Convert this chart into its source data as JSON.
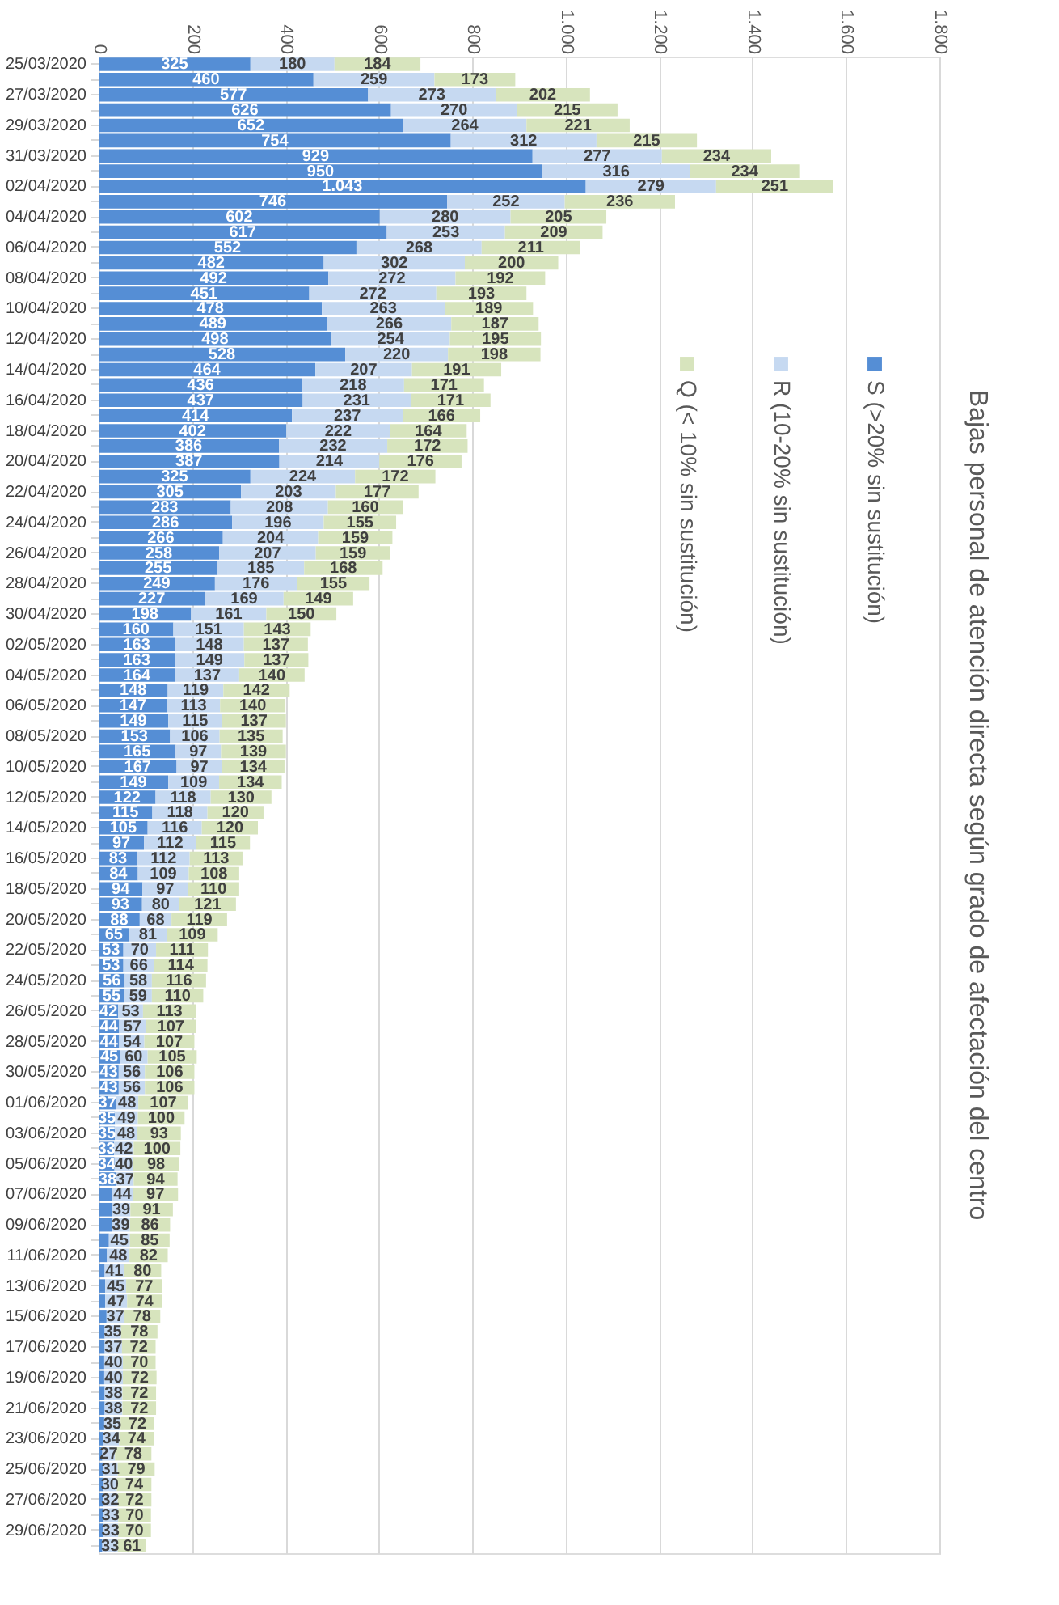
{
  "chart_data": {
    "type": "bar",
    "orientation": "horizontal",
    "stacked": true,
    "title": "Bajas personal de atención directa según grado de afectación del centro",
    "categories": [
      "25/03/2020",
      null,
      "27/03/2020",
      null,
      "29/03/2020",
      null,
      "31/03/2020",
      null,
      "02/04/2020",
      null,
      "04/04/2020",
      null,
      "06/04/2020",
      null,
      "08/04/2020",
      null,
      "10/04/2020",
      null,
      "12/04/2020",
      null,
      "14/04/2020",
      null,
      "16/04/2020",
      null,
      "18/04/2020",
      null,
      "20/04/2020",
      null,
      "22/04/2020",
      null,
      "24/04/2020",
      null,
      "26/04/2020",
      null,
      "28/04/2020",
      null,
      "30/04/2020",
      null,
      "02/05/2020",
      null,
      "04/05/2020",
      null,
      "06/05/2020",
      null,
      "08/05/2020",
      null,
      "10/05/2020",
      null,
      "12/05/2020",
      null,
      "14/05/2020",
      null,
      "16/05/2020",
      null,
      "18/05/2020",
      null,
      "20/05/2020",
      null,
      "22/05/2020",
      null,
      "24/05/2020",
      null,
      "26/05/2020",
      null,
      "28/05/2020",
      null,
      "30/05/2020",
      null,
      "01/06/2020",
      null,
      "03/06/2020",
      null,
      "05/06/2020",
      null,
      "07/06/2020",
      null,
      "09/06/2020",
      null,
      "11/06/2020",
      null,
      "13/06/2020",
      null,
      "15/06/2020",
      null,
      "17/06/2020",
      null,
      "19/06/2020",
      null,
      "21/06/2020",
      null,
      "23/06/2020",
      null,
      "25/06/2020",
      null,
      "27/06/2020",
      null,
      "29/06/2020",
      null
    ],
    "series": [
      {
        "name": "S (>20% sin sustitución)",
        "color": "#558ed5",
        "values": [
          325,
          460,
          577,
          626,
          652,
          754,
          929,
          950,
          1043,
          746,
          602,
          617,
          552,
          482,
          492,
          451,
          478,
          489,
          498,
          528,
          464,
          436,
          437,
          414,
          402,
          386,
          387,
          325,
          305,
          283,
          286,
          266,
          258,
          255,
          249,
          227,
          198,
          160,
          163,
          163,
          164,
          148,
          147,
          149,
          153,
          165,
          167,
          149,
          122,
          115,
          105,
          97,
          83,
          84,
          94,
          93,
          88,
          65,
          53,
          53,
          56,
          55,
          42,
          44,
          44,
          45,
          43,
          43,
          37,
          35,
          35,
          33,
          34,
          38,
          29,
          29,
          28,
          22,
          18,
          13,
          14,
          14,
          17,
          13,
          13,
          12,
          12,
          13,
          13,
          12,
          10,
          8,
          10,
          9,
          9,
          9,
          9,
          8
        ],
        "value_labels": [
          "325",
          "460",
          "577",
          "626",
          "652",
          "754",
          "929",
          "950",
          "1.043",
          "746",
          "602",
          "617",
          "552",
          "482",
          "492",
          "451",
          "478",
          "489",
          "498",
          "528",
          "464",
          "436",
          "437",
          "414",
          "402",
          "386",
          "387",
          "325",
          "305",
          "283",
          "286",
          "266",
          "258",
          "255",
          "249",
          "227",
          "198",
          "160",
          "163",
          "163",
          "164",
          "148",
          "147",
          "149",
          "153",
          "165",
          "167",
          "149",
          "122",
          "115",
          "105",
          "97",
          "83",
          "84",
          "94",
          "93",
          "88",
          "65",
          "53",
          "53",
          "56",
          "55",
          "42",
          "44",
          "44",
          "45",
          "43",
          "43",
          "37",
          "35",
          "35",
          "33",
          "34",
          "38",
          null,
          null,
          null,
          null,
          null,
          null,
          null,
          null,
          null,
          null,
          null,
          null,
          null,
          null,
          null,
          null,
          null,
          null,
          null,
          null,
          null,
          null,
          null,
          null
        ]
      },
      {
        "name": "R (10-20% sin sustitución)",
        "color": "#c6d9f1",
        "values": [
          180,
          259,
          273,
          270,
          264,
          312,
          277,
          316,
          279,
          252,
          280,
          253,
          268,
          302,
          272,
          272,
          263,
          266,
          254,
          220,
          207,
          218,
          231,
          237,
          222,
          232,
          214,
          224,
          203,
          208,
          196,
          204,
          207,
          185,
          176,
          169,
          161,
          151,
          148,
          149,
          137,
          119,
          113,
          115,
          106,
          97,
          97,
          109,
          118,
          118,
          116,
          112,
          112,
          109,
          97,
          80,
          68,
          81,
          70,
          66,
          58,
          59,
          53,
          57,
          54,
          60,
          56,
          56,
          48,
          49,
          48,
          42,
          40,
          37,
          44,
          39,
          39,
          45,
          48,
          41,
          45,
          47,
          37,
          35,
          37,
          40,
          40,
          38,
          38,
          35,
          34,
          27,
          31,
          30,
          32,
          33,
          33,
          33
        ],
        "value_labels": [
          "180",
          "259",
          "273",
          "270",
          "264",
          "312",
          "277",
          "316",
          "279",
          "252",
          "280",
          "253",
          "268",
          "302",
          "272",
          "272",
          "263",
          "266",
          "254",
          "220",
          "207",
          "218",
          "231",
          "237",
          "222",
          "232",
          "214",
          "224",
          "203",
          "208",
          "196",
          "204",
          "207",
          "185",
          "176",
          "169",
          "161",
          "151",
          "148",
          "149",
          "137",
          "119",
          "113",
          "115",
          "106",
          "97",
          "97",
          "109",
          "118",
          "118",
          "116",
          "112",
          "112",
          "109",
          "97",
          "80",
          "68",
          "81",
          "70",
          "66",
          "58",
          "59",
          "53",
          "57",
          "54",
          "60",
          "56",
          "56",
          "48",
          "49",
          "48",
          "42",
          "40",
          "37",
          "44",
          "39",
          "39",
          "45",
          "48",
          "41",
          "45",
          "47",
          "37",
          "35",
          "37",
          "40",
          "40",
          "38",
          "38",
          "35",
          "34",
          "27",
          "31",
          "30",
          "32",
          "33",
          "33",
          "33"
        ]
      },
      {
        "name": "Q (< 10% sin sustitución)",
        "color": "#d7e4bd",
        "values": [
          184,
          173,
          202,
          215,
          221,
          215,
          234,
          234,
          251,
          236,
          205,
          209,
          211,
          200,
          192,
          193,
          189,
          187,
          195,
          198,
          191,
          171,
          171,
          166,
          164,
          172,
          176,
          172,
          177,
          160,
          155,
          159,
          159,
          168,
          155,
          149,
          150,
          143,
          137,
          137,
          140,
          142,
          140,
          137,
          135,
          139,
          134,
          134,
          130,
          120,
          120,
          115,
          113,
          108,
          110,
          121,
          119,
          109,
          111,
          114,
          116,
          110,
          113,
          107,
          107,
          105,
          106,
          106,
          107,
          100,
          93,
          100,
          98,
          94,
          97,
          91,
          86,
          85,
          82,
          80,
          77,
          74,
          78,
          78,
          72,
          70,
          72,
          72,
          72,
          72,
          74,
          78,
          79,
          74,
          72,
          70,
          70,
          61
        ],
        "value_labels": [
          "184",
          "173",
          "202",
          "215",
          "221",
          "215",
          "234",
          "234",
          "251",
          "236",
          "205",
          "209",
          "211",
          "200",
          "192",
          "193",
          "189",
          "187",
          "195",
          "198",
          "191",
          "171",
          "171",
          "166",
          "164",
          "172",
          "176",
          "172",
          "177",
          "160",
          "155",
          "159",
          "159",
          "168",
          "155",
          "149",
          "150",
          "143",
          "137",
          "137",
          "140",
          "142",
          "140",
          "137",
          "135",
          "139",
          "134",
          "134",
          "130",
          "120",
          "120",
          "115",
          "113",
          "108",
          "110",
          "121",
          "119",
          "109",
          "111",
          "114",
          "116",
          "110",
          "113",
          "107",
          "107",
          "105",
          "106",
          "106",
          "107",
          "100",
          "93",
          "100",
          "98",
          "94",
          "97",
          "91",
          "86",
          "85",
          "82",
          "80",
          "77",
          "74",
          "78",
          "78",
          "72",
          "70",
          "72",
          "72",
          "72",
          "72",
          "74",
          "78",
          "79",
          "74",
          "72",
          "70",
          "70",
          "61"
        ]
      }
    ],
    "xlim": [
      0,
      1800
    ],
    "xticks": [
      0,
      200,
      400,
      600,
      800,
      {
        "value": 1000,
        "label": "1.000"
      },
      {
        "value": 1200,
        "label": "1.200"
      },
      {
        "value": 1400,
        "label": "1.400"
      },
      {
        "value": 1600,
        "label": "1.600"
      },
      {
        "value": 1800,
        "label": "1.800"
      }
    ],
    "grid": "x",
    "legend": "top right"
  }
}
